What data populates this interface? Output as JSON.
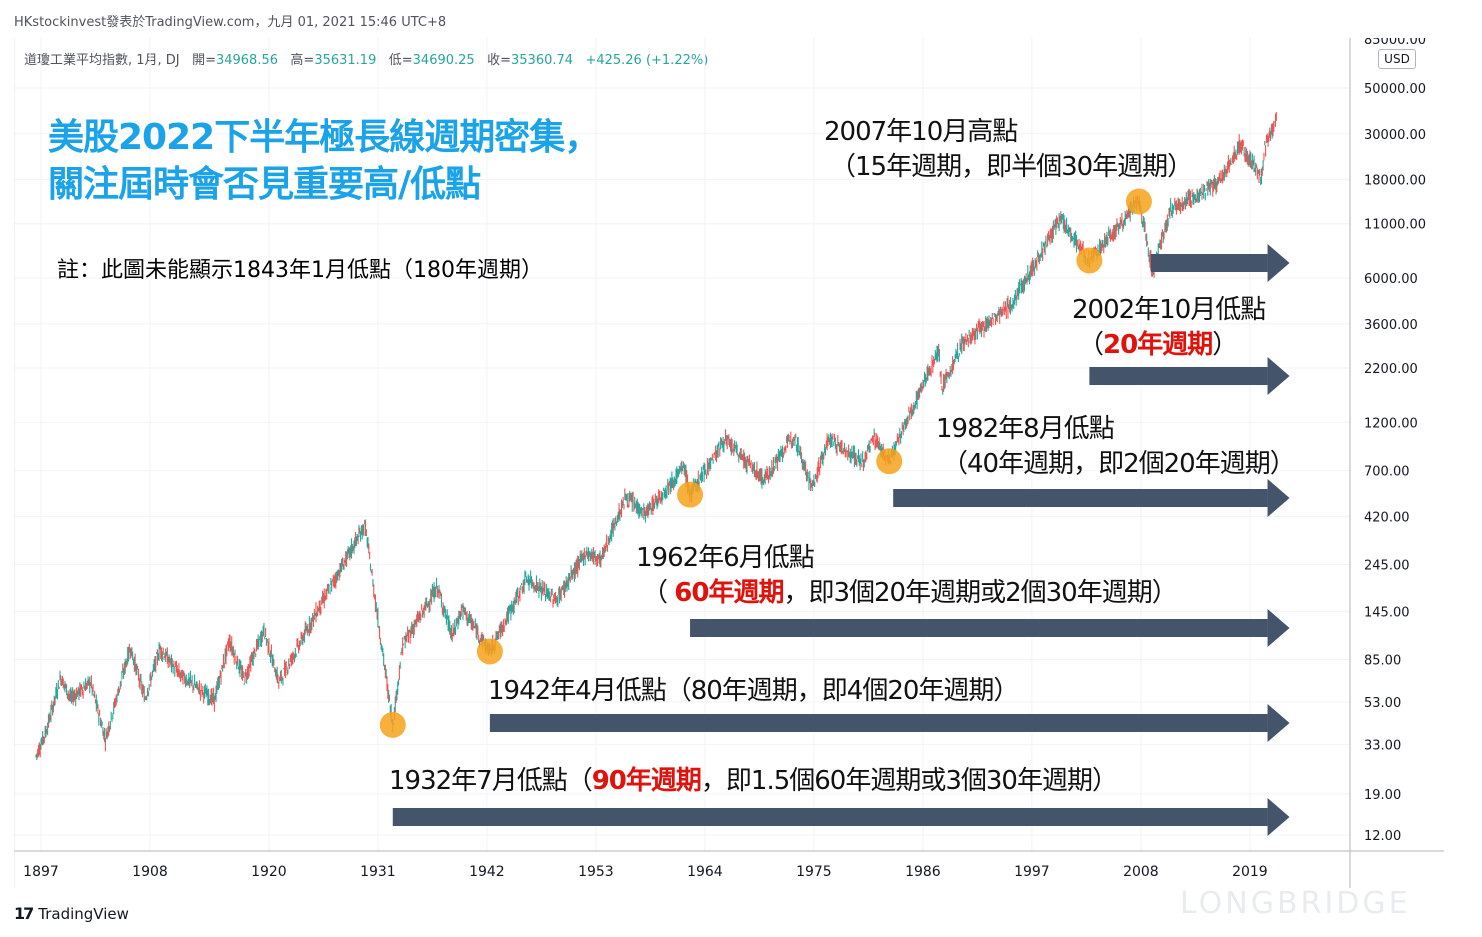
{
  "header": {
    "publisher_line": "HKstockinvest發表於TradingView.com，九月 01, 2021 15:46 UTC+8",
    "symbol_label": "道瓊工業平均指數, 1月, DJ",
    "open_label": "開=",
    "open_value": "34968.56",
    "high_label": "高=",
    "high_value": "35631.19",
    "low_label": "低=",
    "low_value": "34690.25",
    "close_label": "收=",
    "close_value": "35360.74",
    "change": "+425.26 (+1.22%)",
    "currency": "USD"
  },
  "title": {
    "line1": "美股2022下半年極長線週期密集，",
    "line2": "關注屆時會否見重要高/低點"
  },
  "note": "註：此圖未能顯示1843年1月低點（180年週期）",
  "annotations": {
    "a2007_l1": "2007年10月高點",
    "a2007_l2": "（15年週期，即半個30年週期）",
    "a2002_l1": "2002年10月低點",
    "a2002_l2_pre": "（",
    "a2002_l2_red": "20年週期",
    "a2002_l2_post": "）",
    "a1982_l1": "1982年8月低點",
    "a1982_l2": "（40年週期，即2個20年週期）",
    "a1962_l1": "1962年6月低點",
    "a1962_l2_pre": "（ ",
    "a1962_l2_red": "60年週期",
    "a1962_l2_post": "，即3個20年週期或2個30年週期）",
    "a1942": "1942年4月低點（80年週期，即4個20年週期）",
    "a1932_pre": "1932年7月低點（",
    "a1932_red": "90年週期",
    "a1932_post": "，即1.5個60年週期或3個30年週期）"
  },
  "branding": {
    "tv": "TradingView",
    "watermark": "LONGBRIDGE"
  },
  "colors": {
    "up": "#26a69a",
    "down": "#ef5350",
    "marker": "#f7a21b",
    "arrow": "#44546a",
    "title": "#1aa3e8",
    "highlight": "#e0120c"
  },
  "chart_data": {
    "type": "candlestick",
    "series_name": "道瓊工業平均指數",
    "interval": "1M",
    "y_scale": "log",
    "currency": "USD",
    "x_ticks": [
      "1897",
      "1908",
      "1920",
      "1931",
      "1942",
      "1953",
      "1964",
      "1975",
      "1986",
      "1997",
      "2008",
      "2019"
    ],
    "y_ticks": [
      "85000.00",
      "50000.00",
      "30000.00",
      "18000.00",
      "11000.00",
      "6000.00",
      "3600.00",
      "2200.00",
      "1200.00",
      "700.00",
      "420.00",
      "245.00",
      "145.00",
      "85.00",
      "53.00",
      "33.00",
      "19.00",
      "12.00"
    ],
    "approx_path": [
      {
        "year": 1896.5,
        "value": 29
      },
      {
        "year": 1897.5,
        "value": 38
      },
      {
        "year": 1899,
        "value": 70
      },
      {
        "year": 1900,
        "value": 55
      },
      {
        "year": 1902,
        "value": 66
      },
      {
        "year": 1903.5,
        "value": 35
      },
      {
        "year": 1906,
        "value": 97
      },
      {
        "year": 1907.5,
        "value": 55
      },
      {
        "year": 1909,
        "value": 96
      },
      {
        "year": 1911,
        "value": 72
      },
      {
        "year": 1914.5,
        "value": 54
      },
      {
        "year": 1916,
        "value": 105
      },
      {
        "year": 1917.5,
        "value": 68
      },
      {
        "year": 1919.5,
        "value": 118
      },
      {
        "year": 1921,
        "value": 66
      },
      {
        "year": 1925,
        "value": 150
      },
      {
        "year": 1929.7,
        "value": 381
      },
      {
        "year": 1930.5,
        "value": 200
      },
      {
        "year": 1931.5,
        "value": 90
      },
      {
        "year": 1932.5,
        "value": 41
      },
      {
        "year": 1933.5,
        "value": 100
      },
      {
        "year": 1937,
        "value": 190
      },
      {
        "year": 1938.5,
        "value": 110
      },
      {
        "year": 1939.5,
        "value": 150
      },
      {
        "year": 1942.3,
        "value": 93
      },
      {
        "year": 1946,
        "value": 210
      },
      {
        "year": 1949,
        "value": 165
      },
      {
        "year": 1952,
        "value": 280
      },
      {
        "year": 1953.5,
        "value": 260
      },
      {
        "year": 1956,
        "value": 520
      },
      {
        "year": 1958,
        "value": 430
      },
      {
        "year": 1961.9,
        "value": 730
      },
      {
        "year": 1962.5,
        "value": 535
      },
      {
        "year": 1966,
        "value": 990
      },
      {
        "year": 1970,
        "value": 630
      },
      {
        "year": 1973,
        "value": 1050
      },
      {
        "year": 1974.8,
        "value": 577
      },
      {
        "year": 1976.5,
        "value": 1000
      },
      {
        "year": 1980,
        "value": 760
      },
      {
        "year": 1981,
        "value": 1020
      },
      {
        "year": 1982.6,
        "value": 777
      },
      {
        "year": 1987.6,
        "value": 2720
      },
      {
        "year": 1987.9,
        "value": 1740
      },
      {
        "year": 1990,
        "value": 2900
      },
      {
        "year": 1995,
        "value": 4500
      },
      {
        "year": 1999.9,
        "value": 11700
      },
      {
        "year": 2002.8,
        "value": 7300
      },
      {
        "year": 2007.8,
        "value": 14100
      },
      {
        "year": 2009.2,
        "value": 6500
      },
      {
        "year": 2011,
        "value": 12800
      },
      {
        "year": 2016,
        "value": 17500
      },
      {
        "year": 2018,
        "value": 26800
      },
      {
        "year": 2020.2,
        "value": 18200
      },
      {
        "year": 2020.5,
        "value": 26000
      },
      {
        "year": 2021.7,
        "value": 35360
      }
    ],
    "markers": [
      {
        "label": "1932年7月低點",
        "year": 1932.5,
        "value": 41
      },
      {
        "label": "1942年4月低點",
        "year": 1942.3,
        "value": 93
      },
      {
        "label": "1962年6月低點",
        "year": 1962.5,
        "value": 535
      },
      {
        "label": "1982年8月低點",
        "year": 1982.6,
        "value": 777
      },
      {
        "label": "2002年10月低點",
        "year": 2002.8,
        "value": 7300
      },
      {
        "label": "2007年10月高點",
        "year": 2007.8,
        "value": 14100
      }
    ],
    "cycle_arrows": [
      {
        "from_year": 2009.0,
        "to_year": 2023.0,
        "label": "15年週期"
      },
      {
        "from_year": 2002.8,
        "to_year": 2023.0,
        "label": "20年週期"
      },
      {
        "from_year": 1983.0,
        "to_year": 2023.0,
        "label": "40年週期"
      },
      {
        "from_year": 1962.5,
        "to_year": 2023.0,
        "label": "60年週期"
      },
      {
        "from_year": 1942.3,
        "to_year": 2023.0,
        "label": "80年週期"
      },
      {
        "from_year": 1932.5,
        "to_year": 2023.0,
        "label": "90年週期"
      }
    ]
  }
}
